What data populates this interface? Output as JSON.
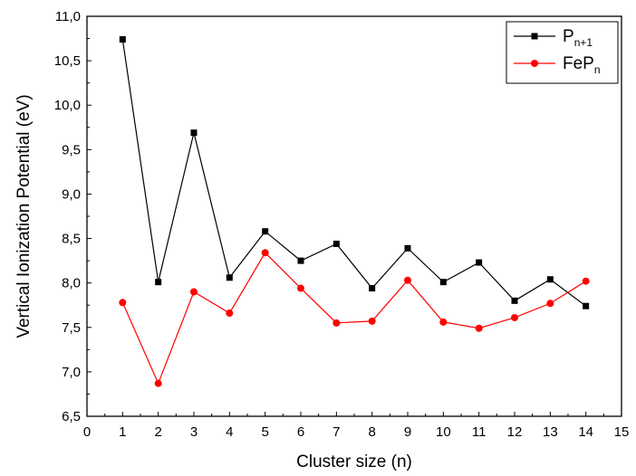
{
  "chart_data": {
    "type": "line",
    "title": "",
    "xlabel": "Cluster size (n)",
    "ylabel": "Vertical Ionization Potential (eV)",
    "xlim": [
      0,
      15
    ],
    "ylim": [
      6.5,
      11.0
    ],
    "xticks": [
      "0",
      "1",
      "2",
      "3",
      "4",
      "5",
      "6",
      "7",
      "8",
      "9",
      "10",
      "11",
      "12",
      "13",
      "14",
      "15"
    ],
    "yticks": [
      "6,5",
      "7,0",
      "7,5",
      "8,0",
      "8,5",
      "9,0",
      "9,5",
      "10,0",
      "10,5",
      "11,0"
    ],
    "grid": false,
    "legend_position": "top-right",
    "x": [
      1,
      2,
      3,
      4,
      5,
      6,
      7,
      8,
      9,
      10,
      11,
      12,
      13,
      14
    ],
    "series": [
      {
        "legend_main": "P",
        "legend_sub": "n+1",
        "color": "#000000",
        "marker": "square",
        "values": [
          10.74,
          8.01,
          9.69,
          8.06,
          8.58,
          8.25,
          8.44,
          7.94,
          8.39,
          8.01,
          8.23,
          7.8,
          8.04,
          7.74
        ]
      },
      {
        "legend_main": "FeP",
        "legend_sub": "n",
        "color": "#ff0000",
        "marker": "circle",
        "values": [
          7.78,
          6.87,
          7.9,
          7.66,
          8.34,
          7.94,
          7.55,
          7.57,
          8.03,
          7.56,
          7.49,
          7.61,
          7.77,
          8.02
        ]
      }
    ]
  }
}
